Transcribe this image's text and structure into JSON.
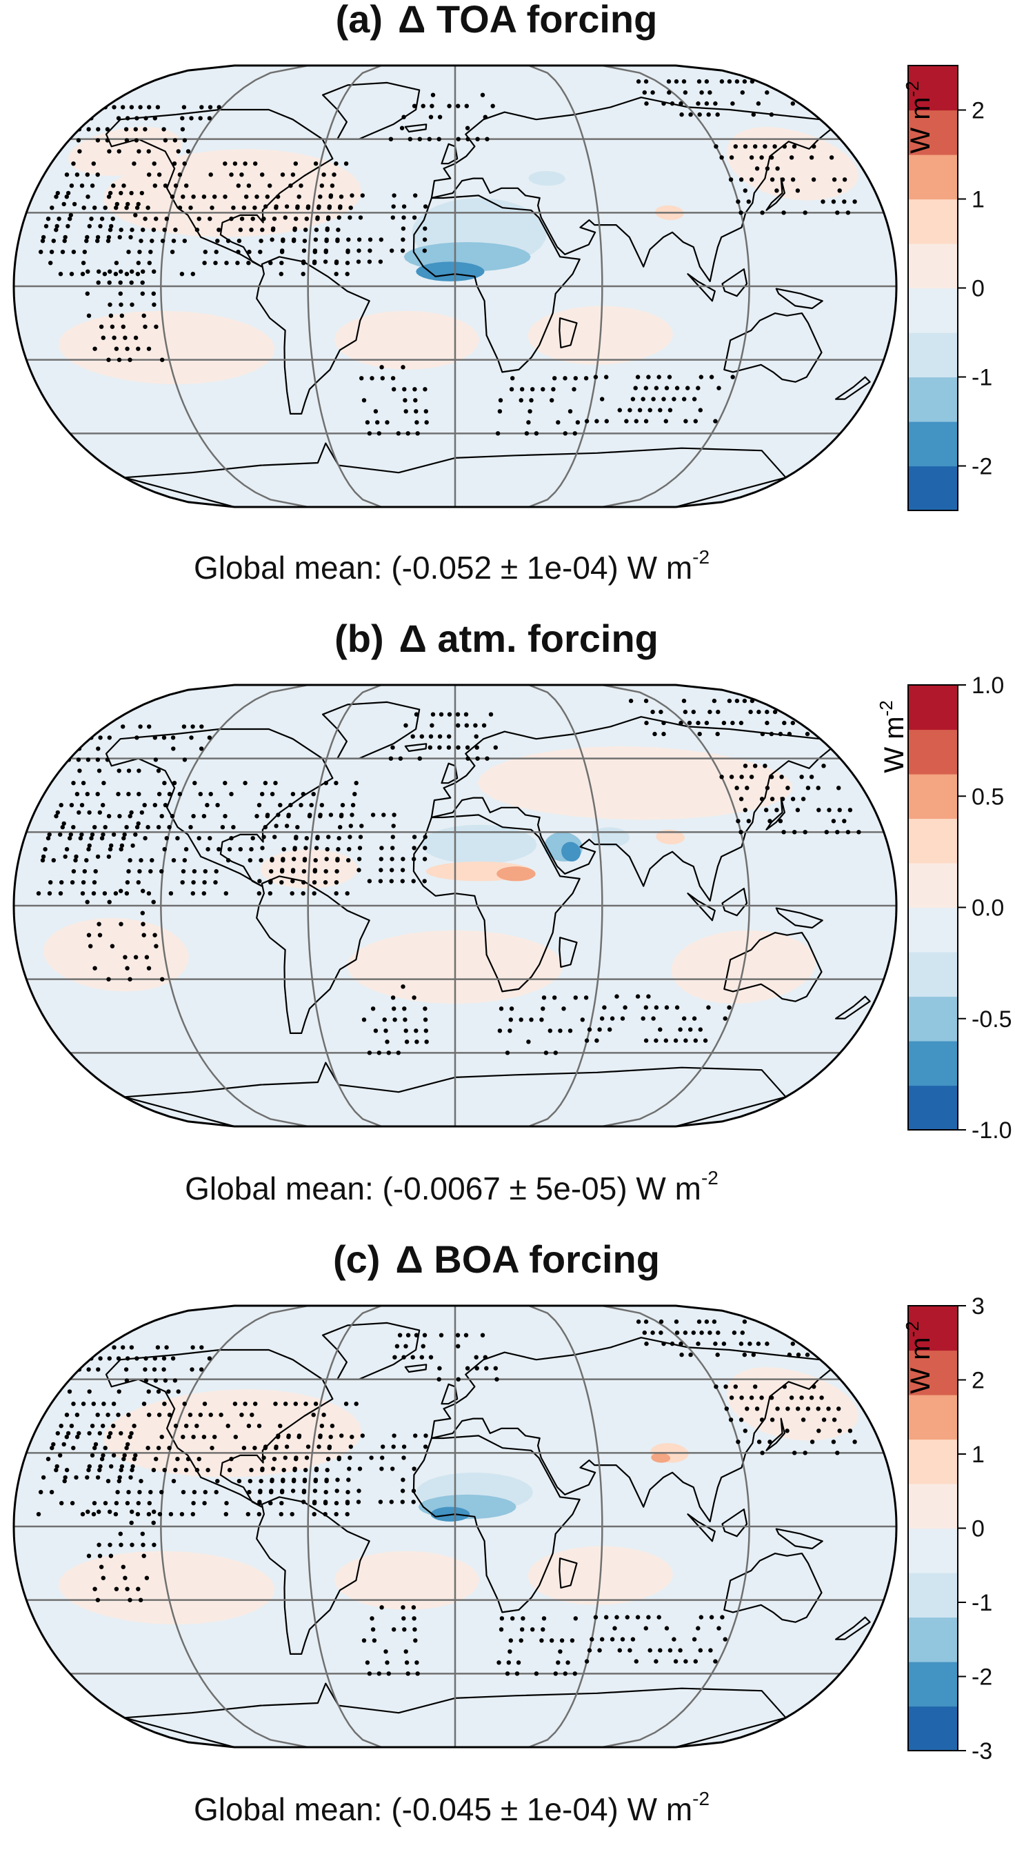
{
  "panels": [
    {
      "label": "(a)",
      "title": "Δ TOA forcing",
      "global_mean": {
        "prefix": "Global mean: (-0.052 ± 1e-04) W m",
        "exponent": "-2"
      },
      "colorbar": {
        "unit_base": "W m",
        "unit_exp": "-2",
        "min": -2.5,
        "max": 2.5,
        "ticks": [
          {
            "value": -2,
            "label": "-2"
          },
          {
            "value": -1,
            "label": "-1"
          },
          {
            "value": 0,
            "label": "0"
          },
          {
            "value": 1,
            "label": "1"
          },
          {
            "value": 2,
            "label": "2"
          }
        ]
      }
    },
    {
      "label": "(b)",
      "title": "Δ atm. forcing",
      "global_mean": {
        "prefix": "Global mean: (-0.0067 ± 5e-05) W m",
        "exponent": "-2"
      },
      "colorbar": {
        "unit_base": "W m",
        "unit_exp": "-2",
        "min": -1.0,
        "max": 1.0,
        "ticks": [
          {
            "value": -1.0,
            "label": "-1.0"
          },
          {
            "value": -0.5,
            "label": "-0.5"
          },
          {
            "value": 0.0,
            "label": "0.0"
          },
          {
            "value": 0.5,
            "label": "0.5"
          },
          {
            "value": 1.0,
            "label": "1.0"
          }
        ]
      }
    },
    {
      "label": "(c)",
      "title": "Δ BOA forcing",
      "global_mean": {
        "prefix": "Global mean: (-0.045 ± 1e-04) W m",
        "exponent": "-2"
      },
      "colorbar": {
        "unit_base": "W m",
        "unit_exp": "-2",
        "min": -3,
        "max": 3,
        "ticks": [
          {
            "value": -3,
            "label": "-3"
          },
          {
            "value": -2,
            "label": "-2"
          },
          {
            "value": -1,
            "label": "-1"
          },
          {
            "value": 0,
            "label": "0"
          },
          {
            "value": 1,
            "label": "1"
          },
          {
            "value": 2,
            "label": "2"
          },
          {
            "value": 3,
            "label": "3"
          }
        ]
      }
    }
  ],
  "palette": [
    "#2166ac",
    "#4393c3",
    "#92c5de",
    "#d1e5f0",
    "#e6eff5",
    "#f9ebe4",
    "#fddbc7",
    "#f4a582",
    "#d6604d",
    "#b2182b"
  ],
  "map_colors": {
    "ocean_blue": "#e6eff5",
    "ocean_red": "#f9ebe4",
    "neg_medium": "#92c5de",
    "neg_strong": "#4393c3",
    "neg_light": "#d1e5f0",
    "pos_medium": "#f4a582",
    "pos_light": "#fddbc7",
    "coast": "#000000",
    "graticule": "#707070",
    "stipple": "#000000"
  }
}
